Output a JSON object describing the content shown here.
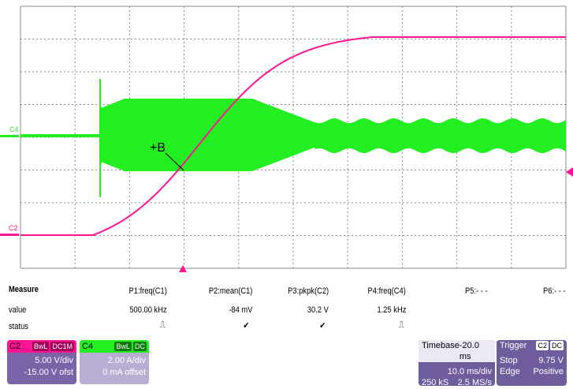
{
  "colors": {
    "c2": "#ff1493",
    "c4": "#22ee22",
    "grid": "#8a8a8a",
    "panel": "#6e5c9c"
  },
  "scope": {
    "c4_label": "C4",
    "c2_label": "C2",
    "cursor_label": "+B"
  },
  "measure": {
    "title": "Measure",
    "row_value": "value",
    "row_status": "status",
    "params": [
      {
        "name": "P1:freq(C1)",
        "value": "500.00 kHz",
        "status": "⎍"
      },
      {
        "name": "P2:mean(C1)",
        "value": "-84 mV",
        "status": "✔"
      },
      {
        "name": "P3:pkpk(C2)",
        "value": "30.2 V",
        "status": "✔"
      },
      {
        "name": "P4:freq(C4)",
        "value": "1.25 kHz",
        "status": "⎍"
      },
      {
        "name": "P5:- - -",
        "value": "",
        "status": ""
      },
      {
        "name": "P6:- - -",
        "value": "",
        "status": ""
      }
    ]
  },
  "c2_box": {
    "label": "C2",
    "tag1": "BwL",
    "tag2": "DC1M",
    "vdiv": "5.00 V/div",
    "offset": "-15.00 V ofst"
  },
  "c4_box": {
    "label": "C4",
    "tag1": "BwL",
    "tag2": "DC",
    "vdiv": "2.00 A/div",
    "offset": "0 mA offset"
  },
  "timebase": {
    "title": "Timebase",
    "delay": "-20.0 ms",
    "tdiv": "10.0 ms/div",
    "samples": "250 kS",
    "rate": "2.5 MS/s"
  },
  "trigger": {
    "title": "Trigger",
    "tag1": "C2",
    "tag2": "DC",
    "mode": "Stop",
    "level": "9.75 V",
    "type": "Edge",
    "slope": "Positive"
  }
}
